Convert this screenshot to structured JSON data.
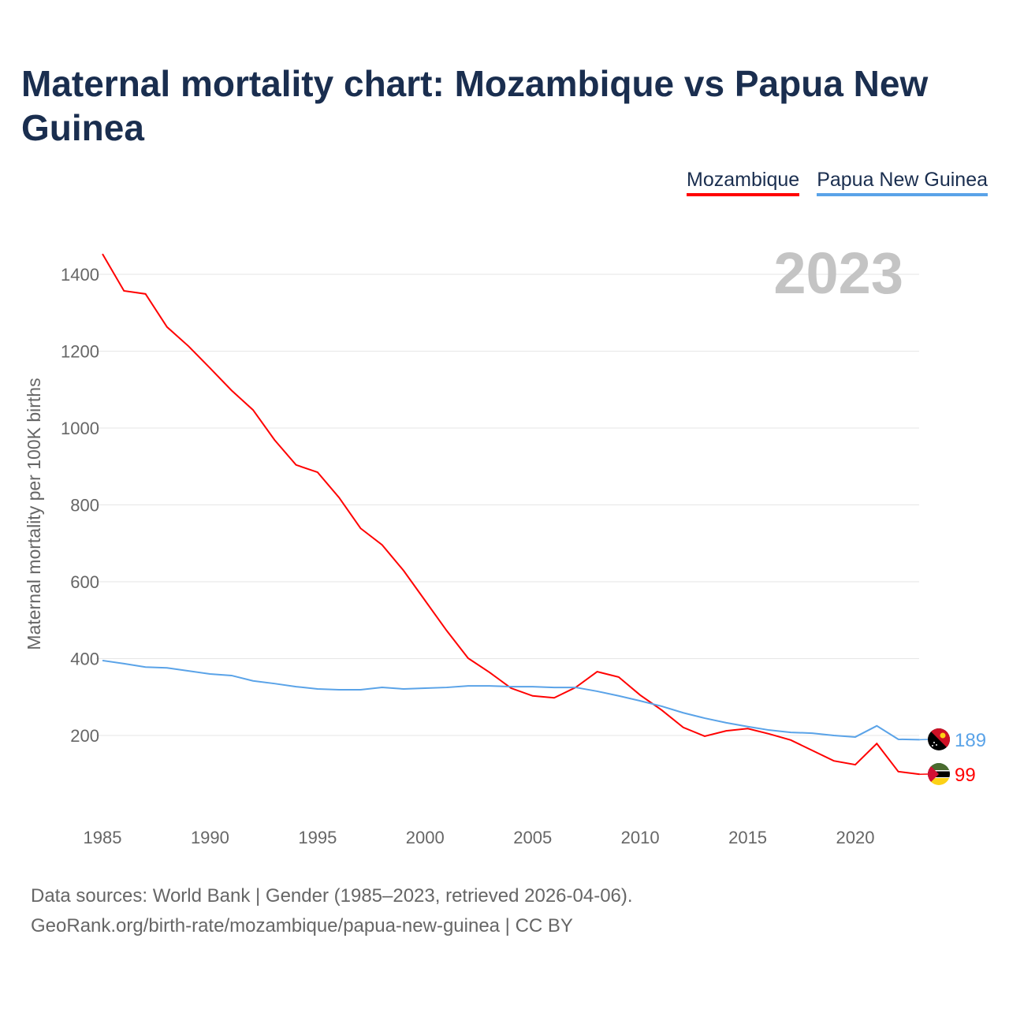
{
  "title": "Maternal mortality chart: Mozambique vs Papua New Guinea",
  "footer": {
    "line1": "Data sources: World Bank | Gender (1985–2023, retrieved 2026-04-06).",
    "line2": "GeoRank.org/birth-rate/mozambique/papua-new-guinea | CC BY"
  },
  "chart_data": {
    "type": "line",
    "title": "Maternal mortality chart: Mozambique vs Papua New Guinea",
    "year_label": "2023",
    "xlabel": "",
    "ylabel": "Maternal mortality per 100K births",
    "xlim": [
      1985,
      2023
    ],
    "ylim": [
      0,
      1460
    ],
    "xticks": [
      1985,
      1990,
      1995,
      2000,
      2005,
      2010,
      2015,
      2020
    ],
    "yticks": [
      200,
      400,
      600,
      800,
      1000,
      1200,
      1400
    ],
    "grid": true,
    "legend_position": "top-right",
    "x": [
      1985,
      1986,
      1987,
      1988,
      1989,
      1990,
      1991,
      1992,
      1993,
      1994,
      1995,
      1996,
      1997,
      1998,
      1999,
      2000,
      2001,
      2002,
      2003,
      2004,
      2005,
      2006,
      2007,
      2008,
      2009,
      2010,
      2011,
      2012,
      2013,
      2014,
      2015,
      2016,
      2017,
      2018,
      2019,
      2020,
      2021,
      2022,
      2023
    ],
    "series": [
      {
        "name": "Mozambique",
        "color": "#ff0000",
        "end_label": "99",
        "values": [
          1453,
          1357,
          1349,
          1263,
          1213,
          1156,
          1098,
          1047,
          969,
          904,
          885,
          819,
          739,
          696,
          629,
          551,
          473,
          401,
          364,
          323,
          303,
          298,
          325,
          366,
          352,
          305,
          266,
          221,
          198,
          212,
          218,
          204,
          188,
          161,
          134,
          124,
          179,
          106,
          99
        ]
      },
      {
        "name": "Papua New Guinea",
        "color": "#5aa3e8",
        "end_label": "189",
        "values": [
          395,
          387,
          378,
          376,
          368,
          360,
          356,
          342,
          335,
          327,
          321,
          319,
          319,
          325,
          321,
          323,
          325,
          329,
          329,
          327,
          327,
          325,
          325,
          315,
          303,
          290,
          276,
          259,
          245,
          233,
          223,
          214,
          208,
          206,
          200,
          196,
          225,
          190,
          189
        ]
      }
    ]
  }
}
